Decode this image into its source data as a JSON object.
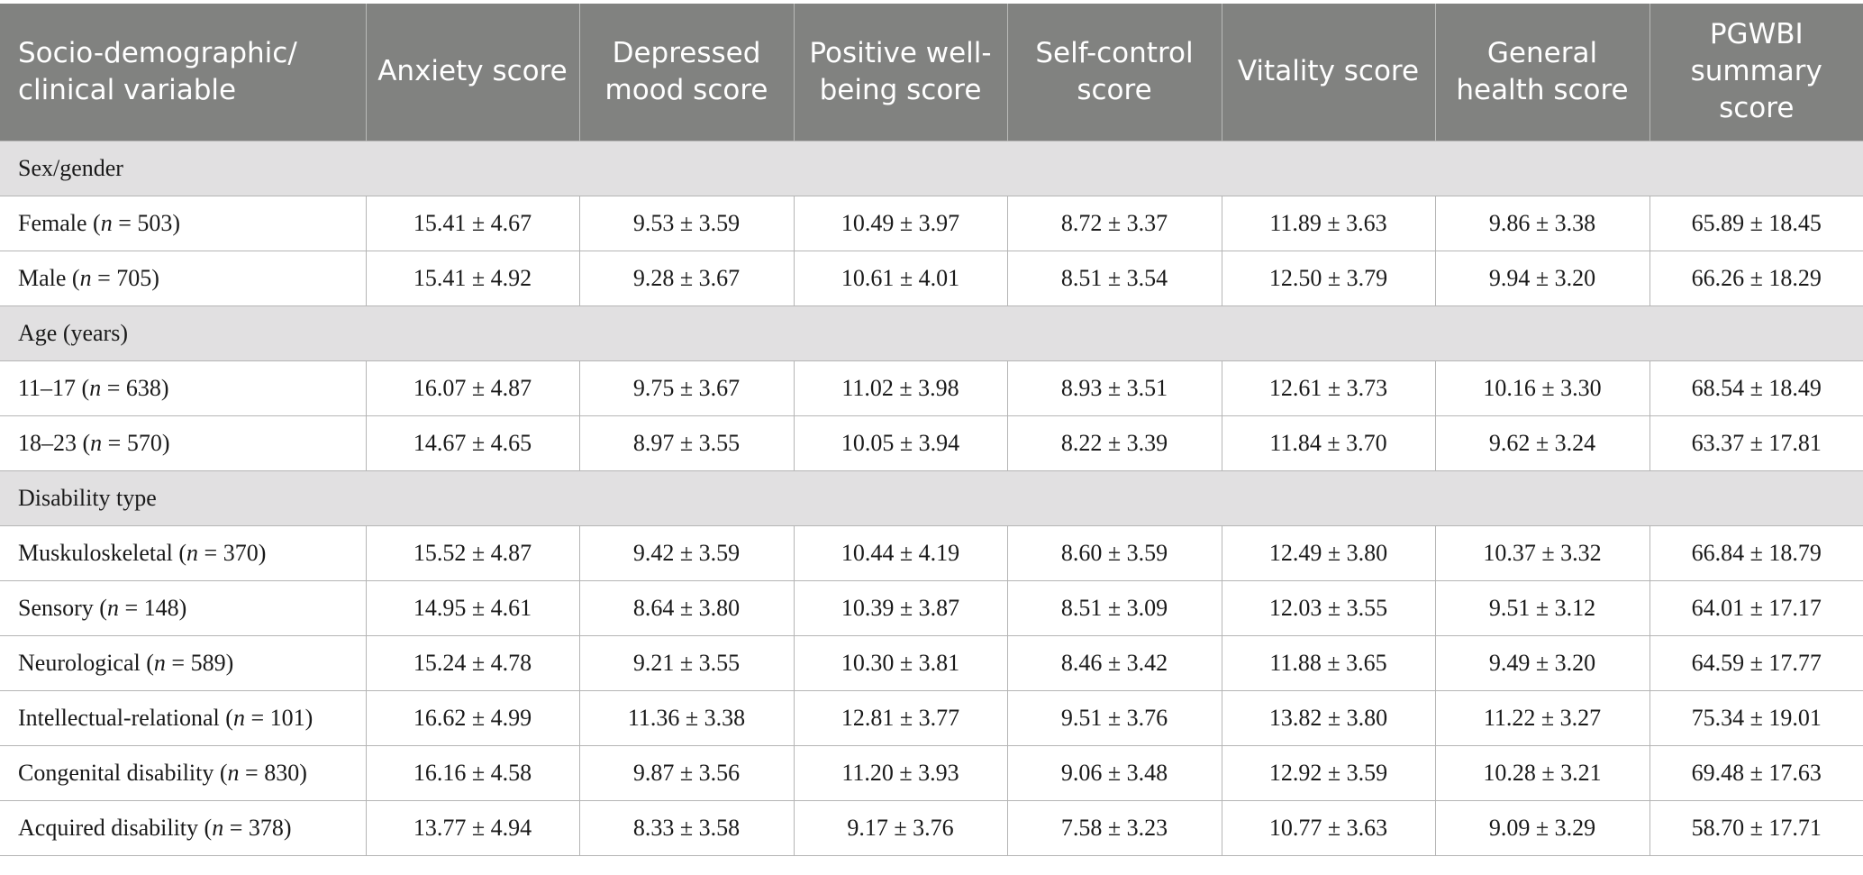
{
  "table": {
    "headers": [
      "Socio-demographic/ clinical variable",
      "Anxiety score",
      "Depressed mood score",
      "Positive well-being score",
      "Self-control score",
      "Vitality score",
      "General health score",
      "PGWBI summary score"
    ],
    "sections": [
      {
        "title": "Sex/gender",
        "rows": [
          {
            "label": "Female",
            "n_symbol": "n",
            "n_text": " = 503",
            "values": [
              "15.41 ± 4.67",
              "9.53 ± 3.59",
              "10.49 ± 3.97",
              "8.72 ± 3.37",
              "11.89 ± 3.63",
              "9.86 ± 3.38",
              "65.89 ± 18.45"
            ]
          },
          {
            "label": "Male",
            "n_symbol": "n",
            "n_text": " = 705",
            "values": [
              "15.41 ± 4.92",
              "9.28 ± 3.67",
              "10.61 ± 4.01",
              "8.51 ± 3.54",
              "12.50 ± 3.79",
              "9.94 ± 3.20",
              "66.26 ± 18.29"
            ]
          }
        ]
      },
      {
        "title": "Age (years)",
        "rows": [
          {
            "label": "11–17",
            "n_symbol": "n",
            "n_text": " = 638",
            "values": [
              "16.07 ± 4.87",
              "9.75 ± 3.67",
              "11.02 ± 3.98",
              "8.93 ± 3.51",
              "12.61 ± 3.73",
              "10.16 ± 3.30",
              "68.54 ± 18.49"
            ]
          },
          {
            "label": "18–23",
            "n_symbol": "n",
            "n_text": " = 570",
            "values": [
              "14.67 ± 4.65",
              "8.97 ± 3.55",
              "10.05 ± 3.94",
              "8.22 ± 3.39",
              "11.84 ± 3.70",
              "9.62 ± 3.24",
              "63.37 ± 17.81"
            ]
          }
        ]
      },
      {
        "title": "Disability type",
        "rows": [
          {
            "label": "Muskuloskeletal",
            "n_symbol": "n",
            "n_text": " = 370",
            "values": [
              "15.52 ± 4.87",
              "9.42 ± 3.59",
              "10.44 ± 4.19",
              "8.60 ± 3.59",
              "12.49 ± 3.80",
              "10.37 ± 3.32",
              "66.84 ± 18.79"
            ]
          },
          {
            "label": "Sensory",
            "n_symbol": "n",
            "n_text": " = 148",
            "values": [
              "14.95 ± 4.61",
              "8.64 ± 3.80",
              "10.39 ± 3.87",
              "8.51 ± 3.09",
              "12.03 ± 3.55",
              "9.51 ± 3.12",
              "64.01 ± 17.17"
            ]
          },
          {
            "label": "Neurological",
            "n_symbol": "n",
            "n_text": " = 589",
            "values": [
              "15.24 ± 4.78",
              "9.21 ± 3.55",
              "10.30 ± 3.81",
              "8.46 ± 3.42",
              "11.88 ± 3.65",
              "9.49 ± 3.20",
              "64.59 ± 17.77"
            ]
          },
          {
            "label": "Intellectual-relational",
            "n_symbol": "n",
            "n_text": " = 101",
            "values": [
              "16.62 ± 4.99",
              "11.36 ± 3.38",
              "12.81 ± 3.77",
              "9.51 ± 3.76",
              "13.82 ± 3.80",
              "11.22 ± 3.27",
              "75.34 ± 19.01"
            ]
          },
          {
            "label": "Congenital disability",
            "n_symbol": "n",
            "n_text": " = 830",
            "values": [
              "16.16 ± 4.58",
              "9.87 ± 3.56",
              "11.20 ± 3.93",
              "9.06 ± 3.48",
              "12.92 ± 3.59",
              "10.28 ± 3.21",
              "69.48 ± 17.63"
            ]
          },
          {
            "label": "Acquired disability",
            "n_symbol": "n",
            "n_text": " = 378",
            "values": [
              "13.77 ± 4.94",
              "8.33 ± 3.58",
              "9.17 ± 3.76",
              "7.58 ± 3.23",
              "10.77 ± 3.63",
              "9.09 ± 3.29",
              "58.70 ± 17.71"
            ]
          }
        ]
      }
    ]
  }
}
